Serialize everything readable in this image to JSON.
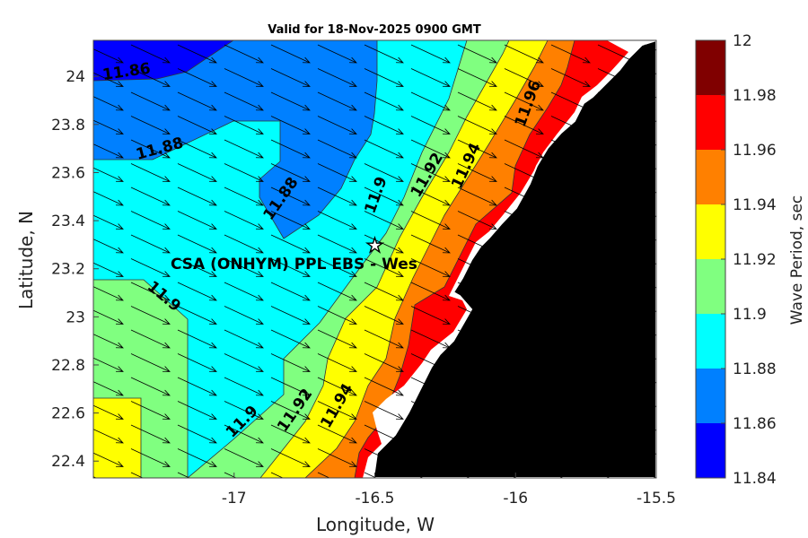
{
  "title": "Valid for 18-Nov-2025 0900 GMT",
  "xlabel": "Longitude, W",
  "ylabel": "Latitude, N",
  "colorbar": {
    "label": "Wave Period, sec",
    "ticks": [
      "12",
      "11.98",
      "11.96",
      "11.94",
      "11.92",
      "11.9",
      "11.88",
      "11.86",
      "11.84"
    ],
    "colors": [
      "#800000",
      "#ff0000",
      "#ff8000",
      "#ffff00",
      "#80ff80",
      "#00ffff",
      "#0080ff",
      "#0000ff"
    ]
  },
  "site": {
    "label": "CSA (ONHYM) PPL EBS - Wes",
    "marker": "star-icon",
    "lon": -16.5,
    "lat": 23.3
  },
  "land_color": "#000000",
  "chart_data": {
    "type": "contour-map",
    "xlim": [
      -17.5,
      -15.5
    ],
    "ylim": [
      22.33,
      24.15
    ],
    "xticks": [
      "-17",
      "-16.5",
      "-16",
      "-15.5"
    ],
    "yticks": [
      "24",
      "23.8",
      "23.6",
      "23.4",
      "23.2",
      "23",
      "22.8",
      "22.6",
      "22.4"
    ],
    "contour_labels": [
      {
        "text": "11.86",
        "lon": -17.38,
        "lat": 24.0
      },
      {
        "text": "11.88",
        "lon": -17.26,
        "lat": 23.68
      },
      {
        "text": "11.88",
        "lon": -16.82,
        "lat": 23.48
      },
      {
        "text": "11.9",
        "lon": -16.48,
        "lat": 23.5
      },
      {
        "text": "11.92",
        "lon": -16.3,
        "lat": 23.58
      },
      {
        "text": "11.94",
        "lon": -16.16,
        "lat": 23.62
      },
      {
        "text": "11.96",
        "lon": -15.94,
        "lat": 23.88
      },
      {
        "text": "11.9",
        "lon": -17.26,
        "lat": 23.07
      },
      {
        "text": "11.9",
        "lon": -16.96,
        "lat": 22.55
      },
      {
        "text": "11.92",
        "lon": -16.77,
        "lat": 22.6
      },
      {
        "text": "11.94",
        "lon": -16.62,
        "lat": 22.62
      }
    ],
    "wave_direction": "toward south-east"
  }
}
